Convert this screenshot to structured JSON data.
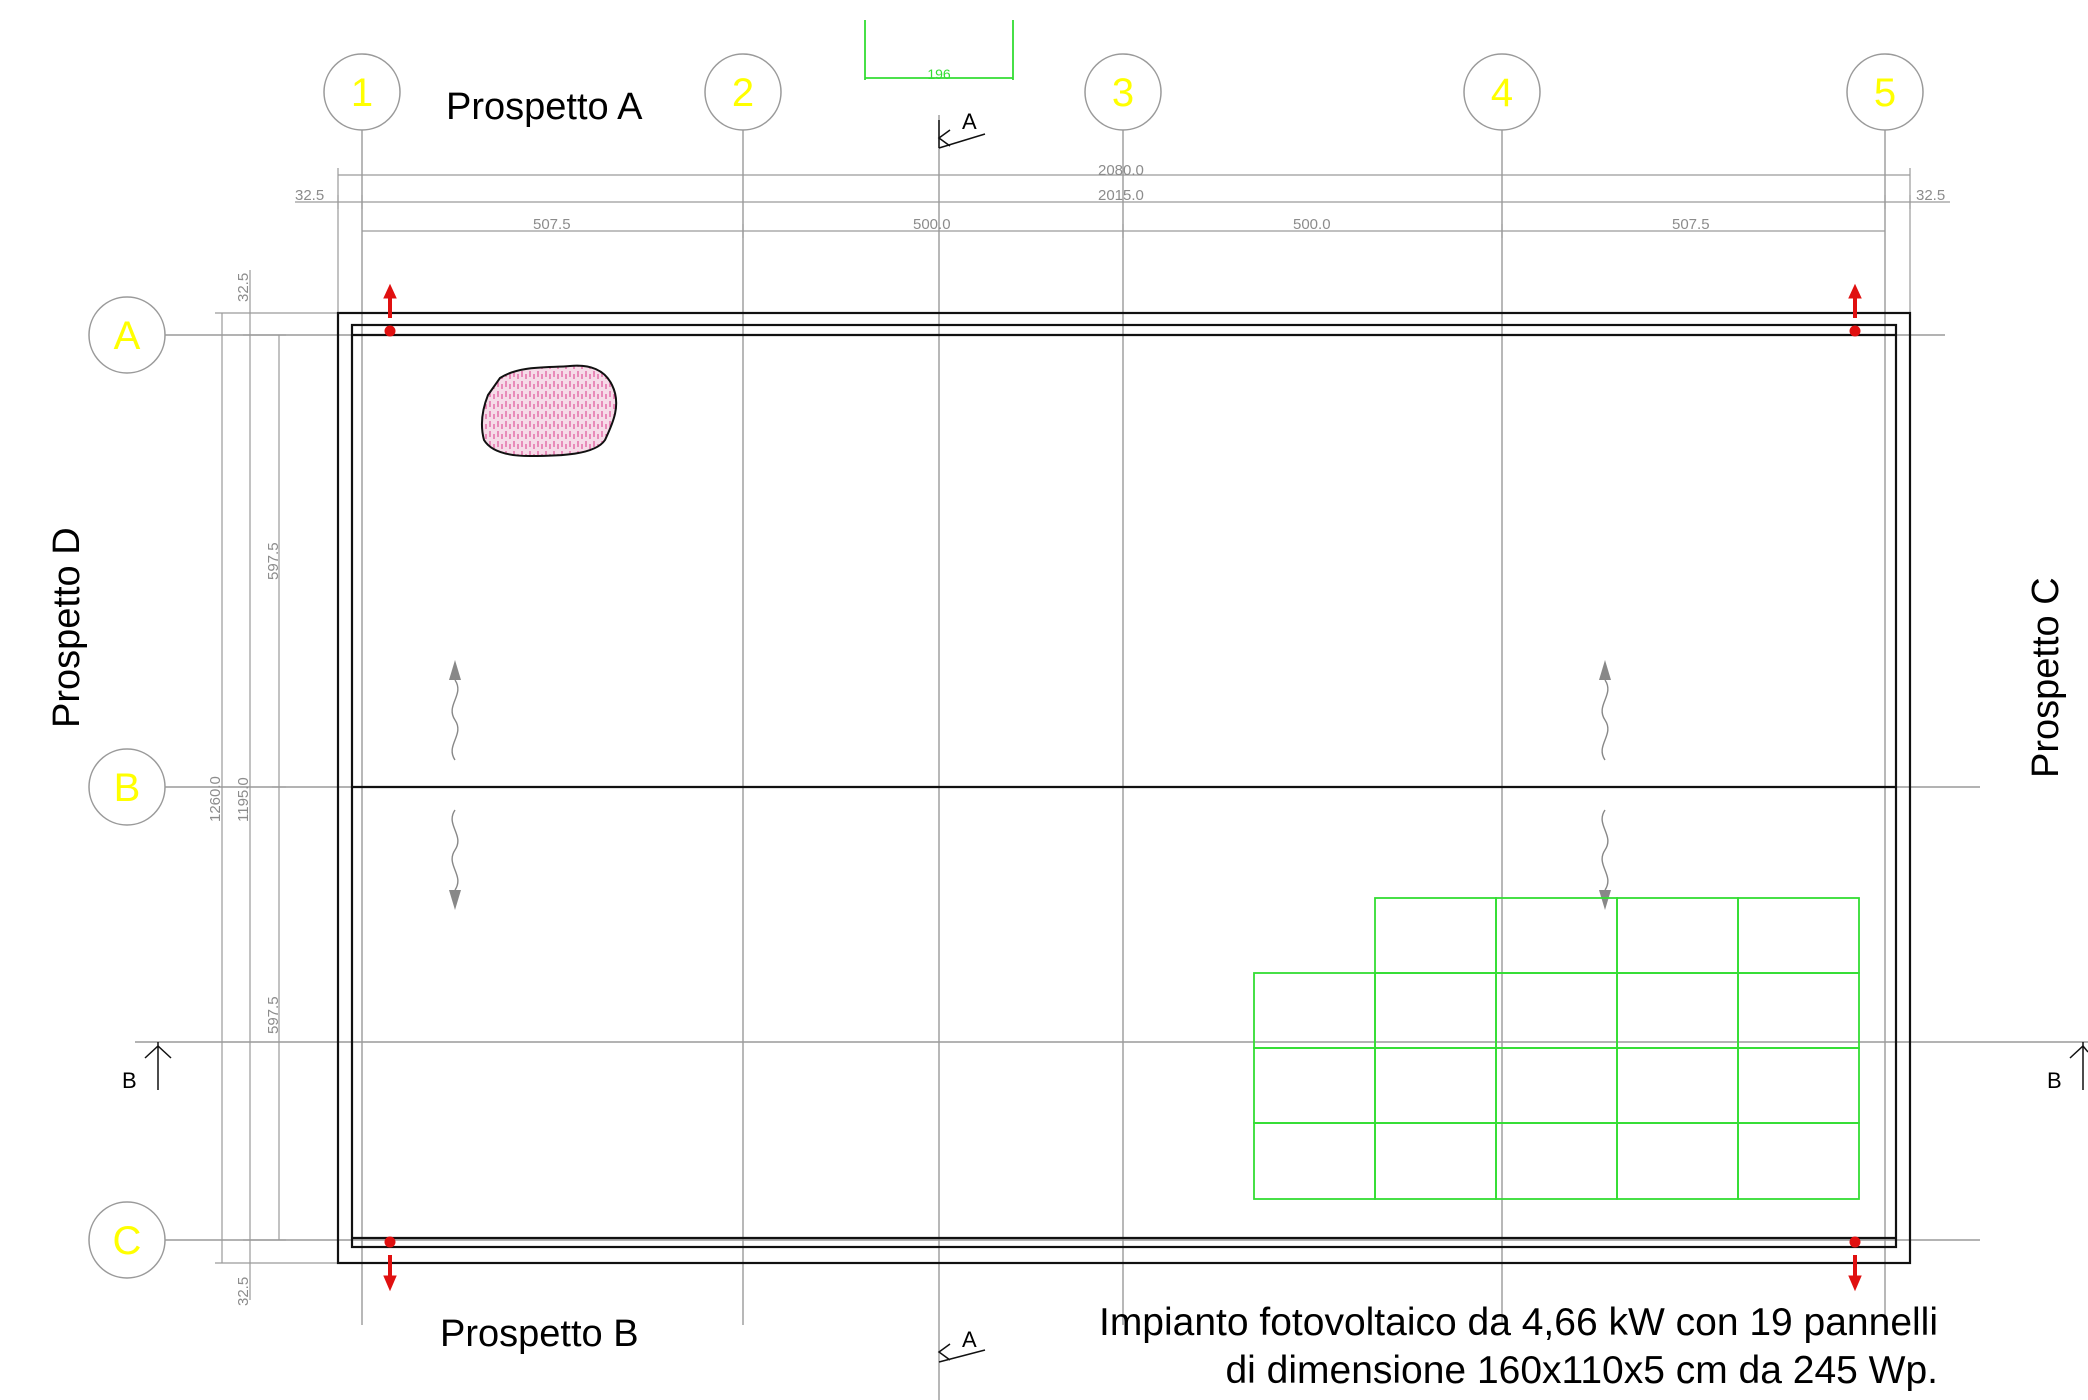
{
  "axes_columns": [
    "1",
    "2",
    "3",
    "4",
    "5"
  ],
  "axes_rows": [
    "A",
    "B",
    "C"
  ],
  "views": {
    "top": "Prospetto A",
    "bottom": "Prospetto B",
    "right": "Prospetto C",
    "left": "Prospetto D"
  },
  "sections": {
    "a_top": "A",
    "a_bottom": "A",
    "b_left": "B",
    "b_right": "B"
  },
  "dimensions": {
    "total_outer": "2080.0",
    "total_axes": "2015.0",
    "overhang_left": "32.5",
    "overhang_right": "32.5",
    "bays": [
      "507.5",
      "500.0",
      "500.0",
      "507.5"
    ],
    "vertical_total": "1260.0",
    "vertical_axes": "1195.0",
    "vertical_bay_top": "597.5",
    "vertical_bay_bottom": "597.5",
    "overhang_top": "32.5",
    "overhang_bottom": "32.5"
  },
  "green_dimension": "196",
  "note": {
    "line1": "Impianto fotovoltaico da 4,66 kW con 19 pannelli",
    "line2": "di dimensione 160x110x5 cm da 245 Wp."
  },
  "pv_panel_count": 19,
  "colors": {
    "axis_label": "#ffff00",
    "pv_panels": "#33dd33",
    "drain": "#e01010",
    "hatch": "#e0559a"
  }
}
